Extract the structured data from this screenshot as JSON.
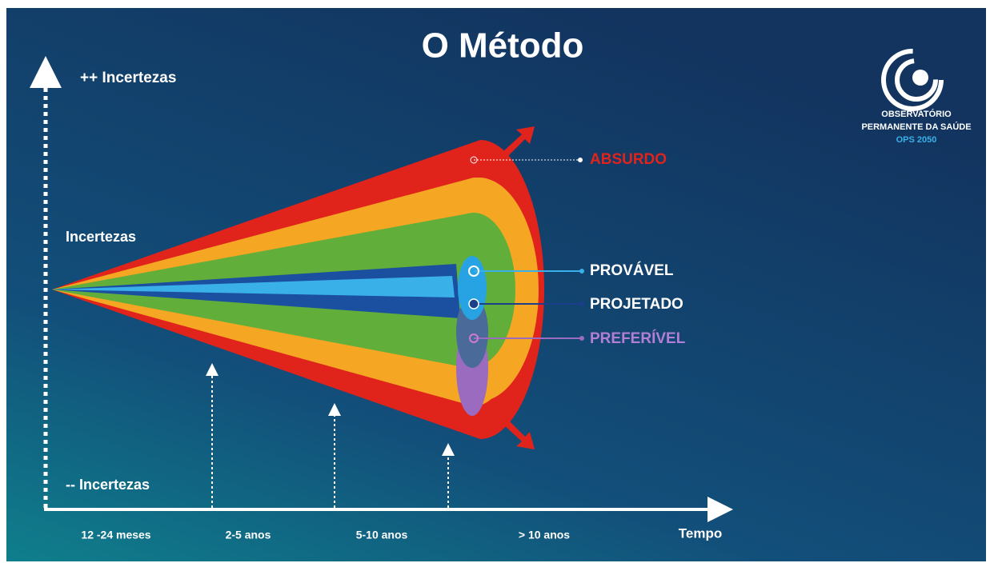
{
  "title": "O Método",
  "y_axis": {
    "top": "++ Incertezas",
    "middle": "Incertezas",
    "bottom": "-- Incertezas"
  },
  "x_axis": {
    "label": "Tempo",
    "periods": [
      "12 -24 meses",
      "2-5 anos",
      "5-10 anos",
      "> 10 anos"
    ]
  },
  "futures": [
    {
      "label": "ABSURDO"
    },
    {
      "label": "PROVÁVEL"
    },
    {
      "label": "PROJETADO"
    },
    {
      "label": "PREFERÍVEL"
    }
  ],
  "logo": {
    "lines": [
      "OBSERVATÓRIO",
      "PERMANENTE DA SAÚDE",
      "OPS 2050"
    ]
  }
}
